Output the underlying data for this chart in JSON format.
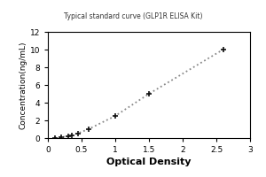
{
  "x": [
    0.1,
    0.2,
    0.3,
    0.35,
    0.45,
    0.6,
    1.0,
    1.5,
    2.6
  ],
  "y": [
    0.05,
    0.1,
    0.2,
    0.35,
    0.55,
    1.0,
    2.5,
    5.0,
    10.0
  ],
  "xlabel": "Optical Density",
  "ylabel": "Concentration(ng/mL)",
  "xlim": [
    0,
    3
  ],
  "ylim": [
    0,
    12
  ],
  "xticks": [
    0,
    0.5,
    1,
    1.5,
    2,
    2.5,
    3
  ],
  "yticks": [
    0,
    2,
    4,
    6,
    8,
    10,
    12
  ],
  "xtick_labels": [
    "0",
    "0.5",
    "1",
    "1.5",
    "2",
    "2.5",
    "3"
  ],
  "ytick_labels": [
    "0",
    "2",
    "4",
    "6",
    "8",
    "10",
    "12"
  ],
  "line_color": "#888888",
  "marker_color": "#111111",
  "background_color": "#ffffff",
  "plot_bg_color": "#ffffff",
  "xlabel_fontsize": 8,
  "ylabel_fontsize": 6.5,
  "tick_fontsize": 6.5,
  "title": "Typical standard curve (GLP1R ELISA Kit)"
}
